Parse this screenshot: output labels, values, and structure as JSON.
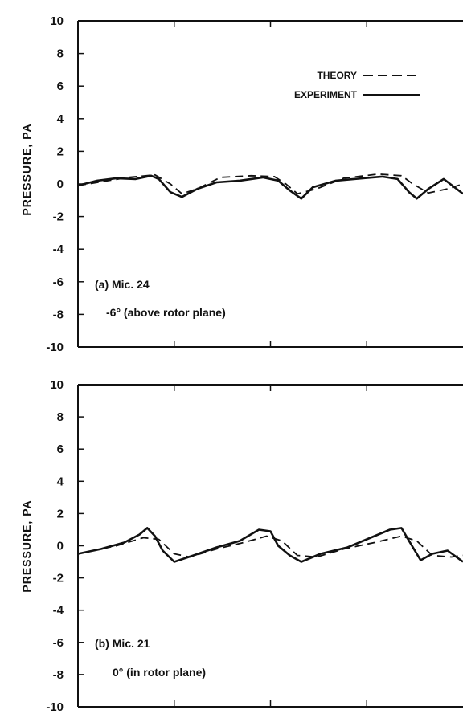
{
  "chart_data": [
    {
      "type": "line",
      "panel_label": "(a) Mic. 24",
      "panel_sublabel": "-6° (above rotor plane)",
      "ylabel": "PRESSURE, PA",
      "ylim": [
        -10,
        10
      ],
      "yticks": [
        "10",
        "8",
        "6",
        "4",
        "2",
        "0",
        "-2",
        "-4",
        "-6",
        "-8",
        "-10"
      ],
      "xlim": [
        0,
        1
      ],
      "grid": false,
      "legend_position": "top-right",
      "legend": [
        {
          "label": "THEORY",
          "style": "dashed"
        },
        {
          "label": "EXPERIMENT",
          "style": "solid"
        }
      ],
      "series": [
        {
          "name": "THEORY",
          "style": "dashed",
          "x": [
            0.0,
            0.13,
            0.2,
            0.24,
            0.27,
            0.31,
            0.37,
            0.45,
            0.51,
            0.54,
            0.57,
            0.62,
            0.69,
            0.78,
            0.84,
            0.87,
            0.91,
            0.96,
            1.0
          ],
          "y": [
            -0.1,
            0.4,
            0.55,
            0.0,
            -0.6,
            -0.3,
            0.4,
            0.5,
            0.45,
            0.0,
            -0.6,
            -0.3,
            0.35,
            0.6,
            0.5,
            0.0,
            -0.55,
            -0.3,
            0.0
          ]
        },
        {
          "name": "EXPERIMENT",
          "style": "solid",
          "x": [
            0.0,
            0.05,
            0.1,
            0.15,
            0.19,
            0.21,
            0.24,
            0.27,
            0.31,
            0.36,
            0.42,
            0.48,
            0.52,
            0.55,
            0.58,
            0.61,
            0.67,
            0.74,
            0.79,
            0.83,
            0.86,
            0.88,
            0.91,
            0.95,
            1.0
          ],
          "y": [
            -0.1,
            0.2,
            0.35,
            0.3,
            0.5,
            0.3,
            -0.5,
            -0.8,
            -0.3,
            0.1,
            0.2,
            0.4,
            0.2,
            -0.4,
            -0.9,
            -0.2,
            0.2,
            0.35,
            0.45,
            0.3,
            -0.5,
            -0.9,
            -0.3,
            0.3,
            -0.6
          ]
        }
      ]
    },
    {
      "type": "line",
      "panel_label": "(b) Mic. 21",
      "panel_sublabel": "0° (in rotor plane)",
      "ylabel": "PRESSURE, PA",
      "ylim": [
        -10,
        10
      ],
      "yticks": [
        "10",
        "8",
        "6",
        "4",
        "2",
        "0",
        "-2",
        "-4",
        "-6",
        "-8",
        "-10"
      ],
      "xlim": [
        0,
        1
      ],
      "grid": false,
      "series": [
        {
          "name": "THEORY",
          "style": "dashed",
          "x": [
            0.0,
            0.1,
            0.17,
            0.21,
            0.25,
            0.29,
            0.36,
            0.43,
            0.49,
            0.53,
            0.57,
            0.62,
            0.69,
            0.77,
            0.84,
            0.88,
            0.92,
            0.97,
            1.0
          ],
          "y": [
            -0.5,
            0.0,
            0.5,
            0.4,
            -0.5,
            -0.7,
            -0.2,
            0.2,
            0.6,
            0.3,
            -0.6,
            -0.7,
            -0.2,
            0.2,
            0.6,
            0.3,
            -0.6,
            -0.7,
            -0.6
          ]
        },
        {
          "name": "EXPERIMENT",
          "style": "solid",
          "x": [
            0.0,
            0.06,
            0.12,
            0.16,
            0.18,
            0.2,
            0.22,
            0.25,
            0.3,
            0.36,
            0.42,
            0.47,
            0.5,
            0.52,
            0.55,
            0.58,
            0.63,
            0.7,
            0.76,
            0.81,
            0.84,
            0.86,
            0.89,
            0.92,
            0.96,
            1.0
          ],
          "y": [
            -0.5,
            -0.2,
            0.2,
            0.7,
            1.1,
            0.6,
            -0.3,
            -1.0,
            -0.6,
            -0.1,
            0.3,
            1.0,
            0.9,
            0.0,
            -0.6,
            -1.0,
            -0.5,
            -0.1,
            0.5,
            1.0,
            1.1,
            0.3,
            -0.9,
            -0.5,
            -0.3,
            -1.0
          ]
        }
      ]
    }
  ]
}
